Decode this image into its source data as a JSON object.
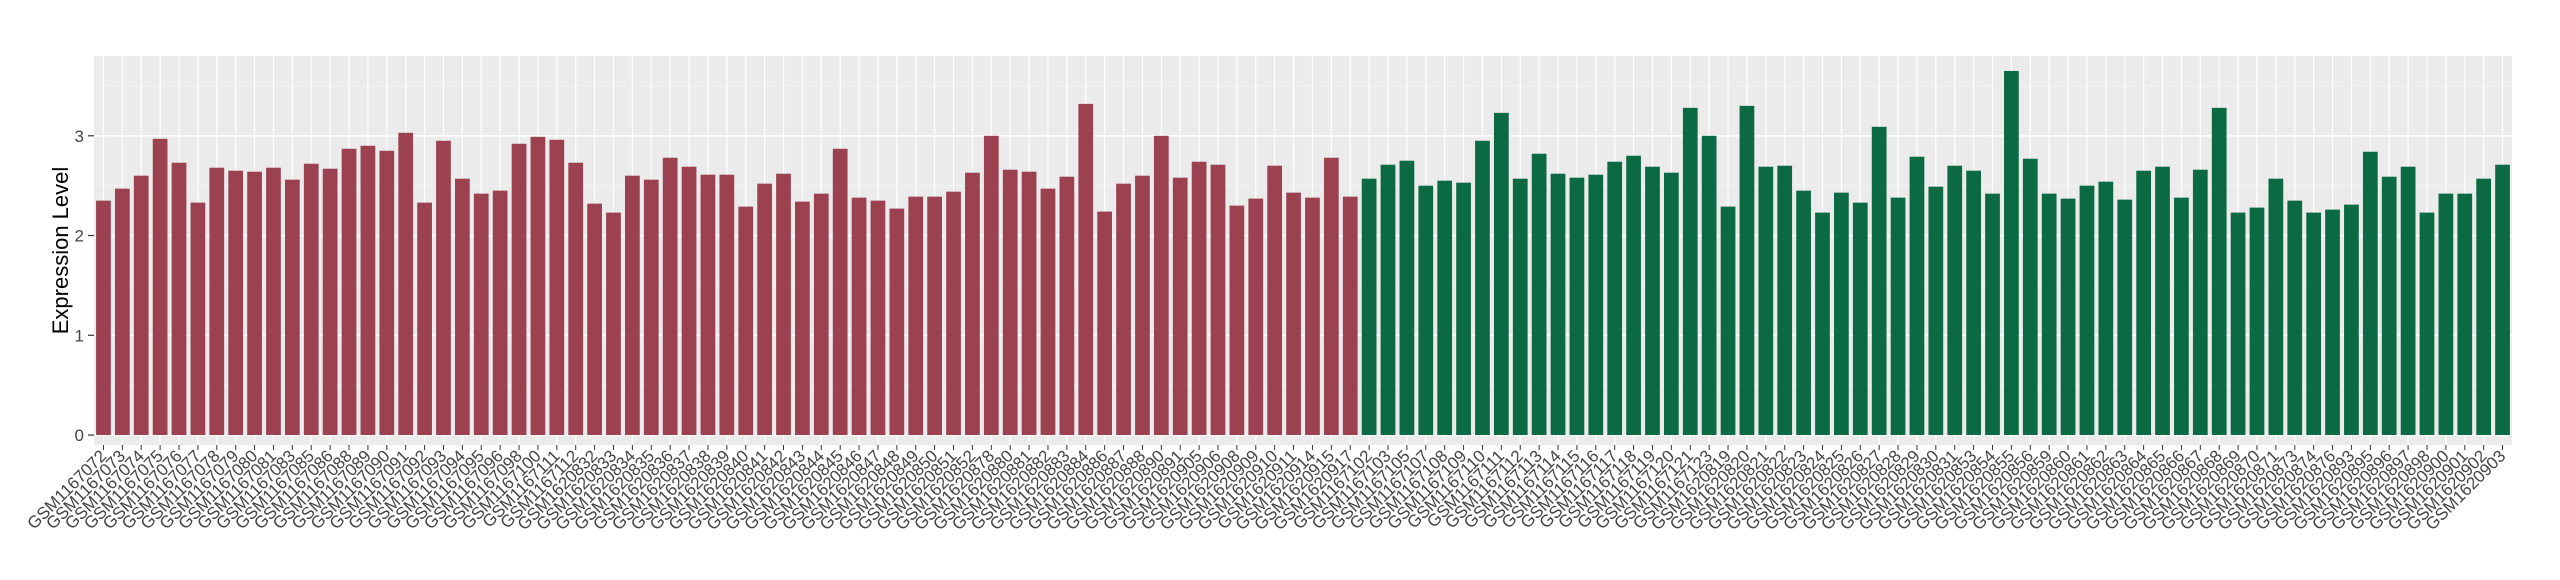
{
  "chart_data": {
    "type": "bar",
    "title": "",
    "xlabel": "",
    "ylabel": "Expression Level",
    "ylim": [
      -0.1,
      3.8
    ],
    "yticks": [
      0,
      1,
      2,
      3
    ],
    "grid": true,
    "legend": "none",
    "colors": {
      "panel_bg": "#ebebeb",
      "grid_major": "#ffffff",
      "grid_minor": "#f3f3f3",
      "group_a": "#9b4150",
      "group_b": "#0b6a44",
      "tick_text": "#444444"
    },
    "categories": [
      "GSM1167072",
      "GSM1167073",
      "GSM1167074",
      "GSM1167075",
      "GSM1167076",
      "GSM1167077",
      "GSM1167078",
      "GSM1167079",
      "GSM1167080",
      "GSM1167081",
      "GSM1167083",
      "GSM1167085",
      "GSM1167086",
      "GSM1167088",
      "GSM1167089",
      "GSM1167090",
      "GSM1167091",
      "GSM1167092",
      "GSM1167093",
      "GSM1167094",
      "GSM1167095",
      "GSM1167096",
      "GSM1167098",
      "GSM1167100",
      "GSM1167111",
      "GSM1167112",
      "GSM1620832",
      "GSM1620833",
      "GSM1620834",
      "GSM1620835",
      "GSM1620836",
      "GSM1620837",
      "GSM1620838",
      "GSM1620839",
      "GSM1620840",
      "GSM1620841",
      "GSM1620842",
      "GSM1620843",
      "GSM1620844",
      "GSM1620845",
      "GSM1620846",
      "GSM1620847",
      "GSM1620848",
      "GSM1620849",
      "GSM1620850",
      "GSM1620851",
      "GSM1620852",
      "GSM1620878",
      "GSM1620880",
      "GSM1620881",
      "GSM1620882",
      "GSM1620883",
      "GSM1620884",
      "GSM1620886",
      "GSM1620887",
      "GSM1620888",
      "GSM1620890",
      "GSM1620891",
      "GSM1620905",
      "GSM1620906",
      "GSM1620908",
      "GSM1620909",
      "GSM1620910",
      "GSM1620911",
      "GSM1620914",
      "GSM1620915",
      "GSM1620917",
      "GSM1167102",
      "GSM1167103",
      "GSM1167105",
      "GSM1167107",
      "GSM1167108",
      "GSM1167109",
      "GSM1167110",
      "GSM1167111",
      "GSM1167112",
      "GSM1167113",
      "GSM1167114",
      "GSM1167115",
      "GSM1167116",
      "GSM1167117",
      "GSM1167118",
      "GSM1167119",
      "GSM1167120",
      "GSM1167121",
      "GSM1167123",
      "GSM1620819",
      "GSM1620820",
      "GSM1620821",
      "GSM1620822",
      "GSM1620823",
      "GSM1620824",
      "GSM1620825",
      "GSM1620826",
      "GSM1620827",
      "GSM1620828",
      "GSM1620829",
      "GSM1620830",
      "GSM1620831",
      "GSM1620853",
      "GSM1620854",
      "GSM1620855",
      "GSM1620856",
      "GSM1620859",
      "GSM1620860",
      "GSM1620861",
      "GSM1620862",
      "GSM1620863",
      "GSM1620864",
      "GSM1620865",
      "GSM1620866",
      "GSM1620867",
      "GSM1620868",
      "GSM1620869",
      "GSM1620870",
      "GSM1620871",
      "GSM1620873",
      "GSM1620874",
      "GSM1620876",
      "GSM1620893",
      "GSM1620895",
      "GSM1620896",
      "GSM1620897",
      "GSM1620898",
      "GSM1620900",
      "GSM1620901",
      "GSM1620902",
      "GSM1620903"
    ],
    "values": [
      2.35,
      2.47,
      2.6,
      2.97,
      2.73,
      2.33,
      2.68,
      2.65,
      2.64,
      2.68,
      2.56,
      2.72,
      2.67,
      2.87,
      2.9,
      2.85,
      3.03,
      2.33,
      2.95,
      2.57,
      2.42,
      2.45,
      2.92,
      2.99,
      2.96,
      2.73,
      2.32,
      2.23,
      2.6,
      2.56,
      2.78,
      2.69,
      2.61,
      2.61,
      2.29,
      2.52,
      2.62,
      2.34,
      2.42,
      2.87,
      2.38,
      2.35,
      2.27,
      2.39,
      2.39,
      2.44,
      2.63,
      3.0,
      2.66,
      2.64,
      2.47,
      2.59,
      3.32,
      2.24,
      2.52,
      2.6,
      3.0,
      2.58,
      2.74,
      2.71,
      2.3,
      2.37,
      2.7,
      2.43,
      2.38,
      2.78,
      2.39,
      2.57,
      2.71,
      2.75,
      2.5,
      2.55,
      2.53,
      2.95,
      3.23,
      2.57,
      2.82,
      2.62,
      2.58,
      2.61,
      2.74,
      2.8,
      2.69,
      2.63,
      3.28,
      3.0,
      2.29,
      3.3,
      2.69,
      2.7,
      2.45,
      2.23,
      2.43,
      2.33,
      3.09,
      2.38,
      2.79,
      2.49,
      2.7,
      2.65,
      2.42,
      3.65,
      2.77,
      2.42,
      2.37,
      2.5,
      2.54,
      2.36,
      2.65,
      2.69,
      2.38,
      2.66,
      3.28,
      2.23,
      2.28,
      2.57,
      2.35,
      2.23,
      2.26,
      2.31,
      2.84,
      2.59,
      2.69,
      2.23,
      2.42,
      2.42,
      2.57,
      2.71
    ],
    "groups": [
      "a",
      "a",
      "a",
      "a",
      "a",
      "a",
      "a",
      "a",
      "a",
      "a",
      "a",
      "a",
      "a",
      "a",
      "a",
      "a",
      "a",
      "a",
      "a",
      "a",
      "a",
      "a",
      "a",
      "a",
      "a",
      "a",
      "a",
      "a",
      "a",
      "a",
      "a",
      "a",
      "a",
      "a",
      "a",
      "a",
      "a",
      "a",
      "a",
      "a",
      "a",
      "a",
      "a",
      "a",
      "a",
      "a",
      "a",
      "a",
      "a",
      "a",
      "a",
      "a",
      "a",
      "a",
      "a",
      "a",
      "a",
      "a",
      "a",
      "a",
      "a",
      "a",
      "a",
      "a",
      "a",
      "a",
      "a",
      "b",
      "b",
      "b",
      "b",
      "b",
      "b",
      "b",
      "b",
      "b",
      "b",
      "b",
      "b",
      "b",
      "b",
      "b",
      "b",
      "b",
      "b",
      "b",
      "b",
      "b",
      "b",
      "b",
      "b",
      "b",
      "b",
      "b",
      "b",
      "b",
      "b",
      "b",
      "b",
      "b",
      "b",
      "b",
      "b",
      "b",
      "b",
      "b",
      "b",
      "b",
      "b",
      "b",
      "b",
      "b",
      "b",
      "b",
      "b",
      "b",
      "b",
      "b",
      "b",
      "b",
      "b",
      "b",
      "b",
      "b",
      "b",
      "b",
      "b",
      "b"
    ]
  }
}
